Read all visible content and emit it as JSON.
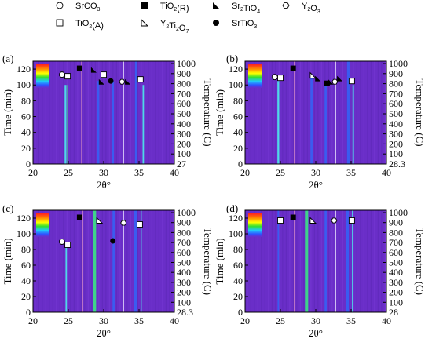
{
  "legend": [
    {
      "symbol": "open-circle",
      "label": "SrCO",
      "sub": "3",
      "suffix": ""
    },
    {
      "symbol": "filled-square",
      "label": "TiO",
      "sub": "2",
      "suffix": "(R)"
    },
    {
      "symbol": "filled-triangle",
      "label": "Sr",
      "sub": "2",
      "suffix": "TiO",
      "sub2": "4"
    },
    {
      "symbol": "open-hexagon",
      "label": "Y",
      "sub": "2",
      "suffix": "O",
      "sub2": "3"
    },
    {
      "symbol": "open-square",
      "label": "TiO",
      "sub": "2",
      "suffix": "(A)"
    },
    {
      "symbol": "open-triangle",
      "label": "Y",
      "sub": "2",
      "suffix": "Ti",
      "sub2": "2",
      "suffix2": "O",
      "sub3": "7"
    },
    {
      "symbol": "filled-circle",
      "label": "SrTiO",
      "sub": "3",
      "suffix": ""
    }
  ],
  "colors": {
    "background": "#6a2ec8",
    "band_blue": "#3a5cf0",
    "band_cyan": "#4fd8e8",
    "band_green": "#3fd38a",
    "band_pink": "#f0a0c8",
    "band_white": "#e8e0ff"
  },
  "chart_data": [
    {
      "type": "heatmap",
      "panel_label": "(a)",
      "xlabel": "2θ°",
      "ylabel": "Time (min)",
      "y2label": "Temperature (C)",
      "xlim": [
        20,
        40
      ],
      "ylim": [
        0,
        130
      ],
      "xticks": [
        "20",
        "25",
        "30",
        "35",
        "40"
      ],
      "yticks": [
        "0",
        "20",
        "40",
        "60",
        "80",
        "100",
        "120"
      ],
      "y2ticks": [
        "27",
        "100",
        "200",
        "300",
        "400",
        "500",
        "600",
        "700",
        "800",
        "900",
        "1000"
      ],
      "bands": [
        {
          "x": 24.6,
          "y_end": 100,
          "color": "band_cyan",
          "width": 0.25
        },
        {
          "x": 24.9,
          "y_end": 100,
          "color": "band_green",
          "width": 0.15
        },
        {
          "x": 26.9,
          "y_end": 130,
          "color": "band_pink",
          "width": 0.12
        },
        {
          "x": 29.2,
          "y_end": 105,
          "color": "band_blue",
          "width": 0.35
        },
        {
          "x": 31.3,
          "y_end": 105,
          "color": "band_blue",
          "width": 0.3
        },
        {
          "x": 32.8,
          "y_end": 130,
          "color": "band_white",
          "width": 0.12
        },
        {
          "x": 34.6,
          "y_end": 130,
          "color": "band_blue",
          "width": 0.35
        },
        {
          "x": 35.6,
          "y_end": 100,
          "color": "band_cyan",
          "width": 0.2
        }
      ],
      "markers": [
        {
          "x": 24.1,
          "y": 113,
          "symbol": "open-circle"
        },
        {
          "x": 24.9,
          "y": 111,
          "symbol": "open-square"
        },
        {
          "x": 26.6,
          "y": 121,
          "symbol": "filled-square"
        },
        {
          "x": 28.6,
          "y": 119,
          "symbol": "filled-triangle"
        },
        {
          "x": 29.7,
          "y": 104,
          "symbol": "filled-triangle"
        },
        {
          "x": 30.0,
          "y": 113,
          "symbol": "open-square"
        },
        {
          "x": 31.0,
          "y": 105,
          "symbol": "filled-circle"
        },
        {
          "x": 32.6,
          "y": 104,
          "symbol": "open-hexagon"
        },
        {
          "x": 33.4,
          "y": 104,
          "symbol": "filled-triangle"
        },
        {
          "x": 35.2,
          "y": 107,
          "symbol": "open-square"
        }
      ]
    },
    {
      "type": "heatmap",
      "panel_label": "(b)",
      "xlabel": "2θ°",
      "ylabel": "Time (min)",
      "y2label": "Temperature (C)",
      "xlim": [
        20,
        40
      ],
      "ylim": [
        0,
        130
      ],
      "xticks": [
        "20",
        "25",
        "30",
        "35",
        "40"
      ],
      "yticks": [
        "0",
        "20",
        "40",
        "60",
        "80",
        "100",
        "120"
      ],
      "y2ticks": [
        "28.3",
        "100",
        "200",
        "300",
        "400",
        "500",
        "600",
        "700",
        "800",
        "900",
        "1000"
      ],
      "bands": [
        {
          "x": 24.7,
          "y_end": 105,
          "color": "band_cyan",
          "width": 0.25
        },
        {
          "x": 27.0,
          "y_end": 130,
          "color": "band_pink",
          "width": 0.12
        },
        {
          "x": 29.4,
          "y_end": 110,
          "color": "band_blue",
          "width": 0.3
        },
        {
          "x": 31.4,
          "y_end": 105,
          "color": "band_blue",
          "width": 0.3
        },
        {
          "x": 32.8,
          "y_end": 130,
          "color": "band_white",
          "width": 0.12
        },
        {
          "x": 34.6,
          "y_end": 130,
          "color": "band_blue",
          "width": 0.35
        },
        {
          "x": 35.3,
          "y_end": 100,
          "color": "band_cyan",
          "width": 0.2
        }
      ],
      "markers": [
        {
          "x": 24.2,
          "y": 110,
          "symbol": "open-circle"
        },
        {
          "x": 25.0,
          "y": 109,
          "symbol": "open-square"
        },
        {
          "x": 26.8,
          "y": 121,
          "symbol": "filled-square"
        },
        {
          "x": 29.6,
          "y": 112,
          "symbol": "open-triangle"
        },
        {
          "x": 30.3,
          "y": 108,
          "symbol": "filled-triangle"
        },
        {
          "x": 31.6,
          "y": 102,
          "symbol": "filled-square"
        },
        {
          "x": 32.1,
          "y": 104,
          "symbol": "filled-triangle"
        },
        {
          "x": 32.7,
          "y": 104,
          "symbol": "open-hexagon"
        },
        {
          "x": 33.4,
          "y": 108,
          "symbol": "filled-triangle"
        },
        {
          "x": 35.1,
          "y": 105,
          "symbol": "open-square"
        }
      ]
    },
    {
      "type": "heatmap",
      "panel_label": "(c)",
      "xlabel": "2θ°",
      "ylabel": "Time (min)",
      "y2label": "Temperature (C)",
      "xlim": [
        20,
        40
      ],
      "ylim": [
        0,
        130
      ],
      "xticks": [
        "20",
        "25",
        "30",
        "35",
        "40"
      ],
      "yticks": [
        "0",
        "20",
        "40",
        "60",
        "80",
        "100",
        "120"
      ],
      "y2ticks": [
        "28.3",
        "100",
        "200",
        "300",
        "400",
        "500",
        "600",
        "700",
        "800",
        "900",
        "1000"
      ],
      "bands": [
        {
          "x": 24.7,
          "y_end": 85,
          "color": "band_cyan",
          "width": 0.2
        },
        {
          "x": 27.0,
          "y_end": 130,
          "color": "band_pink",
          "width": 0.12
        },
        {
          "x": 28.7,
          "y_end": 130,
          "color": "band_green",
          "width": 0.45
        },
        {
          "x": 31.4,
          "y_end": 130,
          "color": "band_blue",
          "width": 0.3
        },
        {
          "x": 32.8,
          "y_end": 130,
          "color": "band_white",
          "width": 0.12
        },
        {
          "x": 34.5,
          "y_end": 130,
          "color": "band_blue",
          "width": 0.35
        },
        {
          "x": 35.3,
          "y_end": 130,
          "color": "band_cyan",
          "width": 0.15
        }
      ],
      "markers": [
        {
          "x": 24.1,
          "y": 90,
          "symbol": "open-circle"
        },
        {
          "x": 24.9,
          "y": 86,
          "symbol": "open-square"
        },
        {
          "x": 26.6,
          "y": 121,
          "symbol": "filled-square"
        },
        {
          "x": 29.4,
          "y": 117,
          "symbol": "open-triangle"
        },
        {
          "x": 31.3,
          "y": 91,
          "symbol": "filled-circle"
        },
        {
          "x": 32.8,
          "y": 114,
          "symbol": "open-hexagon"
        },
        {
          "x": 35.1,
          "y": 112,
          "symbol": "open-square"
        }
      ]
    },
    {
      "type": "heatmap",
      "panel_label": "(d)",
      "xlabel": "2θ°",
      "ylabel": "Time (min)",
      "y2label": "Temperature (C)",
      "xlim": [
        20,
        40
      ],
      "ylim": [
        0,
        130
      ],
      "xticks": [
        "20",
        "25",
        "30",
        "35",
        "40"
      ],
      "yticks": [
        "0",
        "20",
        "40",
        "60",
        "80",
        "100",
        "120"
      ],
      "y2ticks": [
        "28",
        "100",
        "200",
        "300",
        "400",
        "500",
        "600",
        "700",
        "800",
        "900",
        "1000"
      ],
      "bands": [
        {
          "x": 24.7,
          "y_end": 130,
          "color": "band_blue",
          "width": 0.2
        },
        {
          "x": 27.0,
          "y_end": 130,
          "color": "band_pink",
          "width": 0.12
        },
        {
          "x": 28.7,
          "y_end": 130,
          "color": "band_green",
          "width": 0.45
        },
        {
          "x": 31.4,
          "y_end": 130,
          "color": "band_blue",
          "width": 0.3
        },
        {
          "x": 32.8,
          "y_end": 130,
          "color": "band_white",
          "width": 0.12
        },
        {
          "x": 34.5,
          "y_end": 130,
          "color": "band_blue",
          "width": 0.35
        },
        {
          "x": 35.2,
          "y_end": 130,
          "color": "band_cyan",
          "width": 0.15
        }
      ],
      "markers": [
        {
          "x": 25.0,
          "y": 117,
          "symbol": "open-square"
        },
        {
          "x": 26.8,
          "y": 121,
          "symbol": "filled-square"
        },
        {
          "x": 29.6,
          "y": 117,
          "symbol": "open-triangle"
        },
        {
          "x": 32.6,
          "y": 117,
          "symbol": "open-hexagon"
        },
        {
          "x": 35.1,
          "y": 117,
          "symbol": "open-square"
        }
      ]
    }
  ]
}
